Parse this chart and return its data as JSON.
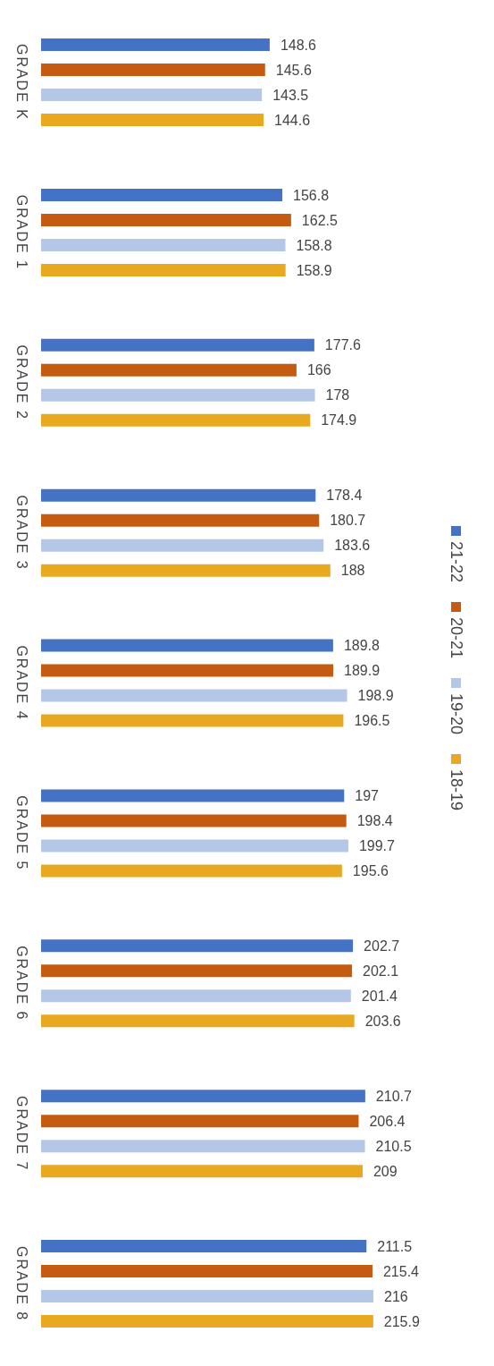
{
  "chart_data": {
    "type": "bar",
    "orientation": "horizontal",
    "categories": [
      "GRADE K",
      "GRADE 1",
      "GRADE 2",
      "GRADE 3",
      "GRADE 4",
      "GRADE 5",
      "GRADE 6",
      "GRADE 7",
      "GRADE 8"
    ],
    "series": [
      {
        "name": "21-22",
        "color": "#4472c4",
        "values": [
          148.6,
          156.8,
          177.6,
          178.4,
          189.8,
          197,
          202.7,
          210.7,
          211.5
        ]
      },
      {
        "name": "20-21",
        "color": "#c55a11",
        "values": [
          145.6,
          162.5,
          166,
          180.7,
          189.9,
          198.4,
          202.1,
          206.4,
          215.4
        ]
      },
      {
        "name": "19-20",
        "color": "#b4c7e7",
        "values": [
          143.5,
          158.8,
          178,
          183.6,
          198.9,
          199.7,
          201.4,
          210.5,
          216
        ]
      },
      {
        "name": "18-19",
        "color": "#e8a820",
        "values": [
          144.6,
          158.9,
          174.9,
          188,
          196.5,
          195.6,
          203.6,
          209,
          215.9
        ]
      }
    ],
    "data_labels": true,
    "legend": "right",
    "grid": false
  }
}
